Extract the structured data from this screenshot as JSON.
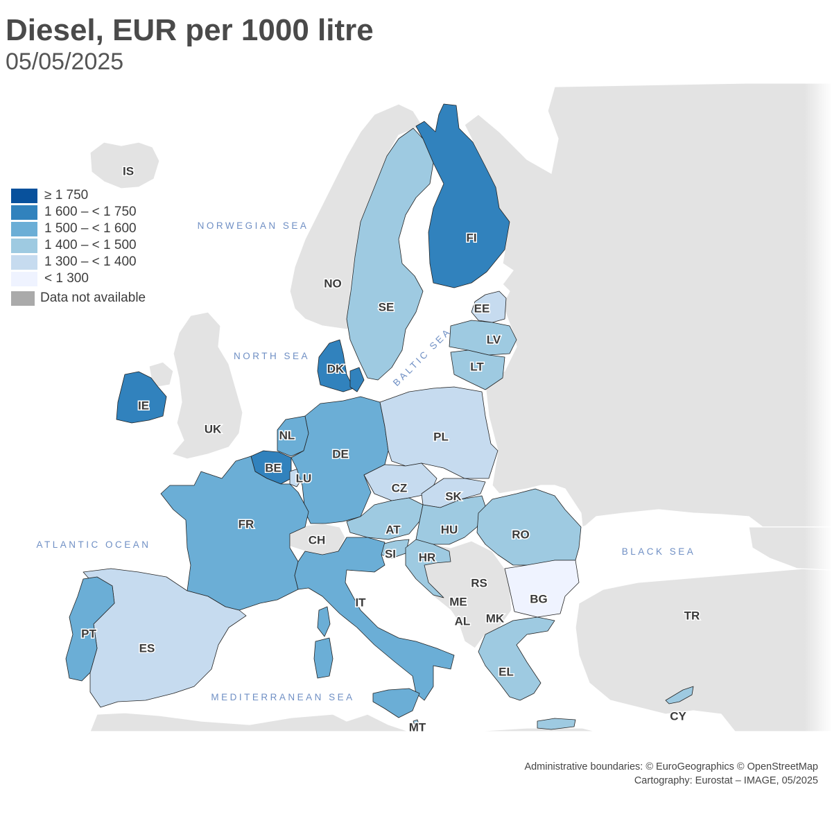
{
  "header": {
    "title": "Diesel, EUR per 1000 litre",
    "subtitle": "05/05/2025"
  },
  "legend": {
    "classes": [
      {
        "label": "≥ 1 750",
        "color": "#08519c"
      },
      {
        "label": "1 600 – < 1 750",
        "color": "#3182bd"
      },
      {
        "label": "1 500 – < 1 600",
        "color": "#6baed6"
      },
      {
        "label": "1 400 – < 1 500",
        "color": "#9ecae1"
      },
      {
        "label": "1 300 – < 1 400",
        "color": "#c6dbef"
      },
      {
        "label": "< 1 300",
        "color": "#eff3ff"
      }
    ],
    "na": {
      "label": "Data not available",
      "color": "#aaaaaa"
    }
  },
  "seas": {
    "norwegian": "NORWEGIAN SEA",
    "north": "NORTH SEA",
    "baltic": "BALTIC SEA",
    "atlantic": "ATLANTIC OCEAN",
    "black": "BLACK SEA",
    "mediterranean": "MEDITERRANEAN SEA"
  },
  "countries": {
    "FI": {
      "label": "FI",
      "class": "1 600 – < 1 750",
      "color": "#3182bd"
    },
    "SE": {
      "label": "SE",
      "class": "1 400 – < 1 500",
      "color": "#9ecae1"
    },
    "EE": {
      "label": "EE",
      "class": "1 300 – < 1 400",
      "color": "#c6dbef"
    },
    "LV": {
      "label": "LV",
      "class": "1 400 – < 1 500",
      "color": "#9ecae1"
    },
    "LT": {
      "label": "LT",
      "class": "1 400 – < 1 500",
      "color": "#9ecae1"
    },
    "DK": {
      "label": "DK",
      "class": "1 600 – < 1 750",
      "color": "#3182bd"
    },
    "IE": {
      "label": "IE",
      "class": "1 600 – < 1 750",
      "color": "#3182bd"
    },
    "NL": {
      "label": "NL",
      "class": "1 500 – < 1 600",
      "color": "#6baed6"
    },
    "BE": {
      "label": "BE",
      "class": "1 600 – < 1 750",
      "color": "#3182bd"
    },
    "LU": {
      "label": "LU",
      "class": "1 300 – < 1 400",
      "color": "#c6dbef"
    },
    "DE": {
      "label": "DE",
      "class": "1 500 – < 1 600",
      "color": "#6baed6"
    },
    "PL": {
      "label": "PL",
      "class": "1 300 – < 1 400",
      "color": "#c6dbef"
    },
    "CZ": {
      "label": "CZ",
      "class": "1 300 – < 1 400",
      "color": "#c6dbef"
    },
    "SK": {
      "label": "SK",
      "class": "1 300 – < 1 400",
      "color": "#c6dbef"
    },
    "AT": {
      "label": "AT",
      "class": "1 400 – < 1 500",
      "color": "#9ecae1"
    },
    "HU": {
      "label": "HU",
      "class": "1 400 – < 1 500",
      "color": "#9ecae1"
    },
    "RO": {
      "label": "RO",
      "class": "1 400 – < 1 500",
      "color": "#9ecae1"
    },
    "SI": {
      "label": "SI",
      "class": "1 400 – < 1 500",
      "color": "#9ecae1"
    },
    "HR": {
      "label": "HR",
      "class": "1 400 – < 1 500",
      "color": "#9ecae1"
    },
    "BG": {
      "label": "BG",
      "class": "< 1 300",
      "color": "#eff3ff"
    },
    "FR": {
      "label": "FR",
      "class": "1 500 – < 1 600",
      "color": "#6baed6"
    },
    "IT": {
      "label": "IT",
      "class": "1 500 – < 1 600",
      "color": "#6baed6"
    },
    "ES": {
      "label": "ES",
      "class": "1 300 – < 1 400",
      "color": "#c6dbef"
    },
    "PT": {
      "label": "PT",
      "class": "1 500 – < 1 600",
      "color": "#6baed6"
    },
    "EL": {
      "label": "EL",
      "class": "1 400 – < 1 500",
      "color": "#9ecae1"
    },
    "CY": {
      "label": "CY",
      "class": "1 400 – < 1 500",
      "color": "#9ecae1"
    },
    "MT": {
      "label": "MT",
      "class": "1 400 – < 1 500",
      "color": "#9ecae1"
    }
  },
  "non_eu_labels": {
    "IS": "IS",
    "NO": "NO",
    "UK": "UK",
    "CH": "CH",
    "RS": "RS",
    "ME": "ME",
    "AL": "AL",
    "MK": "MK",
    "TR": "TR"
  },
  "credits": {
    "line1": "Administrative boundaries: © EuroGeographics © OpenStreetMap",
    "line2": "Cartography: Eurostat – IMAGE, 05/2025"
  }
}
